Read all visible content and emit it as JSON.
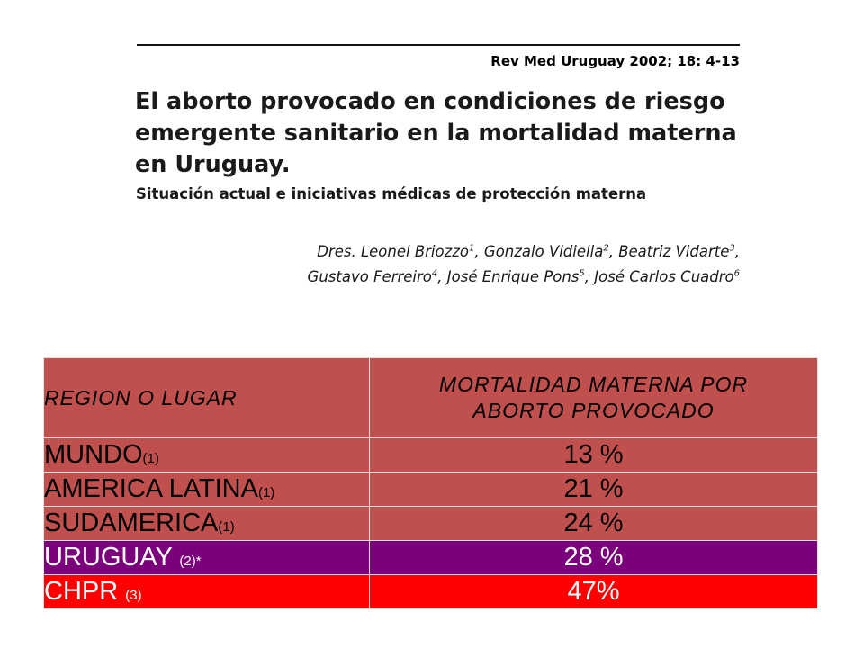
{
  "article": {
    "citation": "Rev Med Uruguay 2002; 18: 4-13",
    "title": "El aborto provocado en condiciones de riesgo emergente sanitario en la mortalidad materna en Uruguay.",
    "subtitle": "Situación actual e iniciativas médicas de protección materna",
    "authors_prefix": "Dres.",
    "authors": [
      {
        "name": "Leonel Briozzo",
        "ref": "1"
      },
      {
        "name": "Gonzalo Vidiella",
        "ref": "2"
      },
      {
        "name": "Beatriz Vidarte",
        "ref": "3"
      },
      {
        "name": "Gustavo Ferreiro",
        "ref": "4"
      },
      {
        "name": "José Enrique Pons",
        "ref": "5"
      },
      {
        "name": "José Carlos Cuadro",
        "ref": "6"
      }
    ]
  },
  "table": {
    "header": {
      "region": "REGION O LUGAR",
      "value_line1": "MORTALIDAD MATERNA POR",
      "value_line2": "ABORTO PROVOCADO"
    },
    "rows": [
      {
        "region": "MUNDO",
        "note": "(1)",
        "value": "13 %"
      },
      {
        "region": "AMERICA LATINA",
        "note": "(1)",
        "value": "21 %"
      },
      {
        "region": "SUDAMERICA",
        "note": "(1)",
        "value": "24 %"
      },
      {
        "region": "URUGUAY ",
        "note": "(2)*",
        "value": "28 %"
      },
      {
        "region": "CHPR ",
        "note": "(3)",
        "value": "47%"
      }
    ],
    "colors": {
      "default": "#c0504d",
      "uruguay": "#7b007b",
      "chpr": "#ff0000"
    }
  }
}
